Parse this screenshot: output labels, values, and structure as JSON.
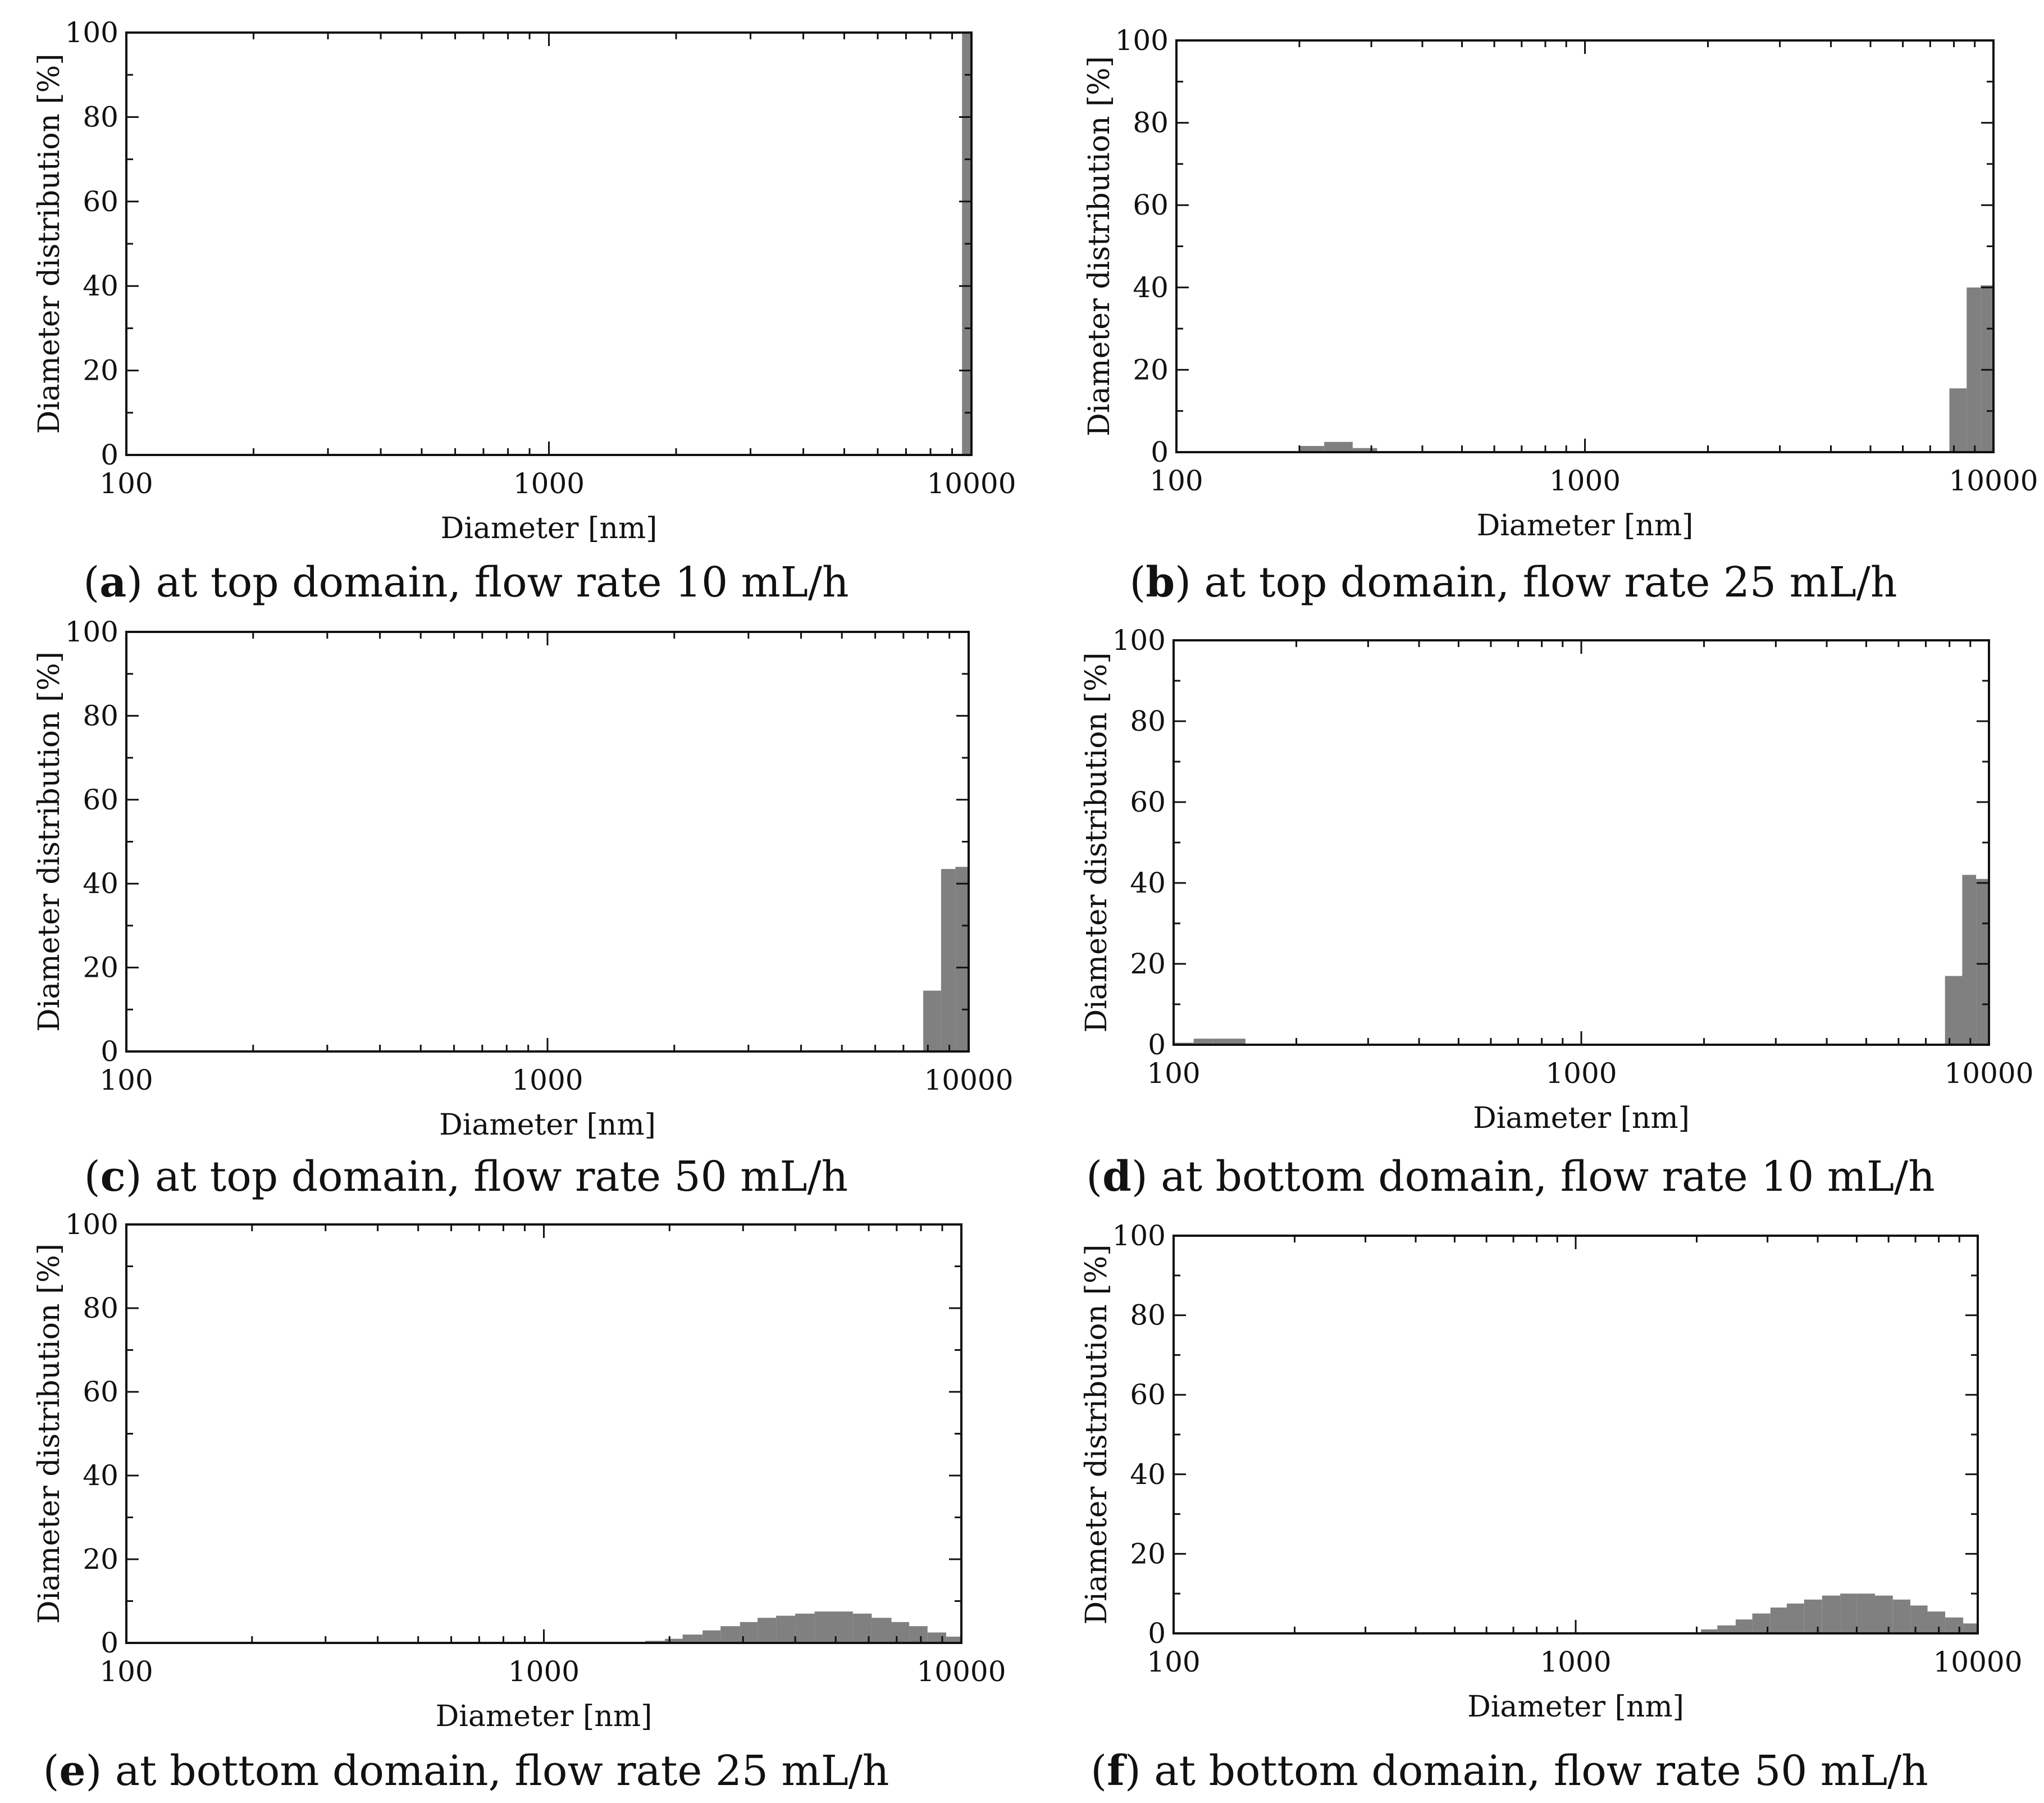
{
  "figure": {
    "panels": [
      {
        "letter": "a",
        "caption": " at top domain, flow rate 10 mL/h"
      },
      {
        "letter": "b",
        "caption": " at top domain, flow rate 25 mL/h"
      },
      {
        "letter": "c",
        "caption": " at top domain, flow rate 50 mL/h"
      },
      {
        "letter": "d",
        "caption": " at bottom domain, flow rate 10 mL/h"
      },
      {
        "letter": "e",
        "caption": " at bottom domain, flow rate 25 mL/h"
      },
      {
        "letter": "f",
        "caption": " at bottom domain, flow rate 50 mL/h"
      }
    ]
  },
  "colors": {
    "bar": "#808080",
    "axis": "#111111",
    "background": "#ffffff"
  },
  "chart_data": [
    {
      "type": "bar",
      "xlabel": "Diameter [nm]",
      "ylabel": "Diameter distribution [%]",
      "xscale": "log",
      "xlim": [
        100,
        10000
      ],
      "ylim": [
        0,
        100
      ],
      "xticks": [
        "100",
        "1000",
        "10000"
      ],
      "yticks": [
        "0",
        "20",
        "40",
        "60",
        "80",
        "100"
      ],
      "bars": [
        {
          "x0": 9500,
          "x1": 10000,
          "y": 100
        }
      ]
    },
    {
      "type": "bar",
      "xlabel": "Diameter [nm]",
      "ylabel": "Diameter distribution [%]",
      "xscale": "log",
      "xlim": [
        100,
        10000
      ],
      "ylim": [
        0,
        100
      ],
      "xticks": [
        "100",
        "1000",
        "10000"
      ],
      "yticks": [
        "0",
        "20",
        "40",
        "60",
        "80",
        "100"
      ],
      "bars": [
        {
          "x0": 200,
          "x1": 230,
          "y": 1.5
        },
        {
          "x0": 230,
          "x1": 270,
          "y": 2.5
        },
        {
          "x0": 270,
          "x1": 310,
          "y": 1
        },
        {
          "x0": 7800,
          "x1": 8600,
          "y": 15.5
        },
        {
          "x0": 8600,
          "x1": 9300,
          "y": 40
        },
        {
          "x0": 9300,
          "x1": 10000,
          "y": 40.5
        }
      ]
    },
    {
      "type": "bar",
      "xlabel": "Diameter [nm]",
      "ylabel": "Diameter distribution [%]",
      "xscale": "log",
      "xlim": [
        100,
        10000
      ],
      "ylim": [
        0,
        100
      ],
      "xticks": [
        "100",
        "1000",
        "10000"
      ],
      "yticks": [
        "0",
        "20",
        "40",
        "60",
        "80",
        "100"
      ],
      "bars": [
        {
          "x0": 7800,
          "x1": 8600,
          "y": 14.5
        },
        {
          "x0": 8600,
          "x1": 9300,
          "y": 43.5
        },
        {
          "x0": 9300,
          "x1": 10000,
          "y": 44
        }
      ]
    },
    {
      "type": "bar",
      "xlabel": "Diameter [nm]",
      "ylabel": "Diameter distribution [%]",
      "xscale": "log",
      "xlim": [
        100,
        10000
      ],
      "ylim": [
        0,
        100
      ],
      "xticks": [
        "100",
        "1000",
        "10000"
      ],
      "yticks": [
        "0",
        "20",
        "40",
        "60",
        "80",
        "100"
      ],
      "bars": [
        {
          "x0": 100,
          "x1": 112,
          "y": 0.5
        },
        {
          "x0": 112,
          "x1": 125,
          "y": 1.5
        },
        {
          "x0": 125,
          "x1": 150,
          "y": 1.5
        },
        {
          "x0": 7800,
          "x1": 8600,
          "y": 17
        },
        {
          "x0": 8600,
          "x1": 9300,
          "y": 42
        },
        {
          "x0": 9300,
          "x1": 10000,
          "y": 41
        }
      ]
    },
    {
      "type": "bar",
      "xlabel": "Diameter  [nm]",
      "ylabel": "Diameter distribution [%]",
      "xscale": "log",
      "xlim": [
        100,
        10000
      ],
      "ylim": [
        0,
        100
      ],
      "xticks": [
        "100",
        "1000",
        "10000"
      ],
      "yticks": [
        "0",
        "20",
        "40",
        "60",
        "80",
        "100"
      ],
      "bars": [
        {
          "x0": 1750,
          "x1": 1950,
          "y": 0.5
        },
        {
          "x0": 1950,
          "x1": 2150,
          "y": 1
        },
        {
          "x0": 2150,
          "x1": 2400,
          "y": 2
        },
        {
          "x0": 2400,
          "x1": 2650,
          "y": 3
        },
        {
          "x0": 2650,
          "x1": 2950,
          "y": 4
        },
        {
          "x0": 2950,
          "x1": 3250,
          "y": 5
        },
        {
          "x0": 3250,
          "x1": 3600,
          "y": 6
        },
        {
          "x0": 3600,
          "x1": 4000,
          "y": 6.5
        },
        {
          "x0": 4000,
          "x1": 4450,
          "y": 7
        },
        {
          "x0": 4450,
          "x1": 4950,
          "y": 7.5
        },
        {
          "x0": 4950,
          "x1": 5500,
          "y": 7.5
        },
        {
          "x0": 5500,
          "x1": 6100,
          "y": 7
        },
        {
          "x0": 6100,
          "x1": 6800,
          "y": 6
        },
        {
          "x0": 6800,
          "x1": 7500,
          "y": 5
        },
        {
          "x0": 7500,
          "x1": 8300,
          "y": 4
        },
        {
          "x0": 8300,
          "x1": 9200,
          "y": 2.5
        },
        {
          "x0": 9200,
          "x1": 10000,
          "y": 1.5
        }
      ]
    },
    {
      "type": "bar",
      "xlabel": "Diameter [nm]",
      "ylabel": "Diameter distribution [%]",
      "xscale": "log",
      "xlim": [
        100,
        10000
      ],
      "ylim": [
        0,
        100
      ],
      "xticks": [
        "100",
        "1000",
        "10000"
      ],
      "yticks": [
        "0",
        "20",
        "40",
        "60",
        "80",
        "100"
      ],
      "bars": [
        {
          "x0": 2050,
          "x1": 2250,
          "y": 1
        },
        {
          "x0": 2250,
          "x1": 2500,
          "y": 2
        },
        {
          "x0": 2500,
          "x1": 2750,
          "y": 3.5
        },
        {
          "x0": 2750,
          "x1": 3050,
          "y": 5
        },
        {
          "x0": 3050,
          "x1": 3350,
          "y": 6.5
        },
        {
          "x0": 3350,
          "x1": 3700,
          "y": 7.5
        },
        {
          "x0": 3700,
          "x1": 4100,
          "y": 8.5
        },
        {
          "x0": 4100,
          "x1": 4550,
          "y": 9.5
        },
        {
          "x0": 4550,
          "x1": 5000,
          "y": 10
        },
        {
          "x0": 5000,
          "x1": 5550,
          "y": 10
        },
        {
          "x0": 5550,
          "x1": 6150,
          "y": 9.5
        },
        {
          "x0": 6150,
          "x1": 6800,
          "y": 8.5
        },
        {
          "x0": 6800,
          "x1": 7500,
          "y": 7
        },
        {
          "x0": 7500,
          "x1": 8300,
          "y": 5.5
        },
        {
          "x0": 8300,
          "x1": 9200,
          "y": 4
        },
        {
          "x0": 9200,
          "x1": 10000,
          "y": 2.5
        }
      ]
    }
  ]
}
